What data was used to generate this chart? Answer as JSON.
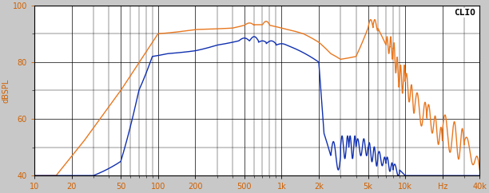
{
  "background_color": "#c8c8c8",
  "plot_bg_color": "#ffffff",
  "grid_color": "#000000",
  "orange_color": "#e87820",
  "blue_color": "#1030b0",
  "tick_label_color": "#d06000",
  "ylabel": "dBSPL",
  "watermark": "CLIO",
  "xlim": [
    10,
    40000
  ],
  "ylim": [
    40,
    100
  ],
  "ytick_major": [
    40,
    60,
    80,
    100
  ],
  "ytick_minor": [
    50,
    70,
    90
  ],
  "xtick_labels": [
    "10",
    "20",
    "50",
    "100",
    "200",
    "500",
    "1k",
    "2k",
    "5k",
    "10k",
    "Hz",
    "40k"
  ],
  "xtick_freqs": [
    10,
    20,
    50,
    100,
    200,
    500,
    1000,
    2000,
    5000,
    10000,
    20000,
    40000
  ]
}
